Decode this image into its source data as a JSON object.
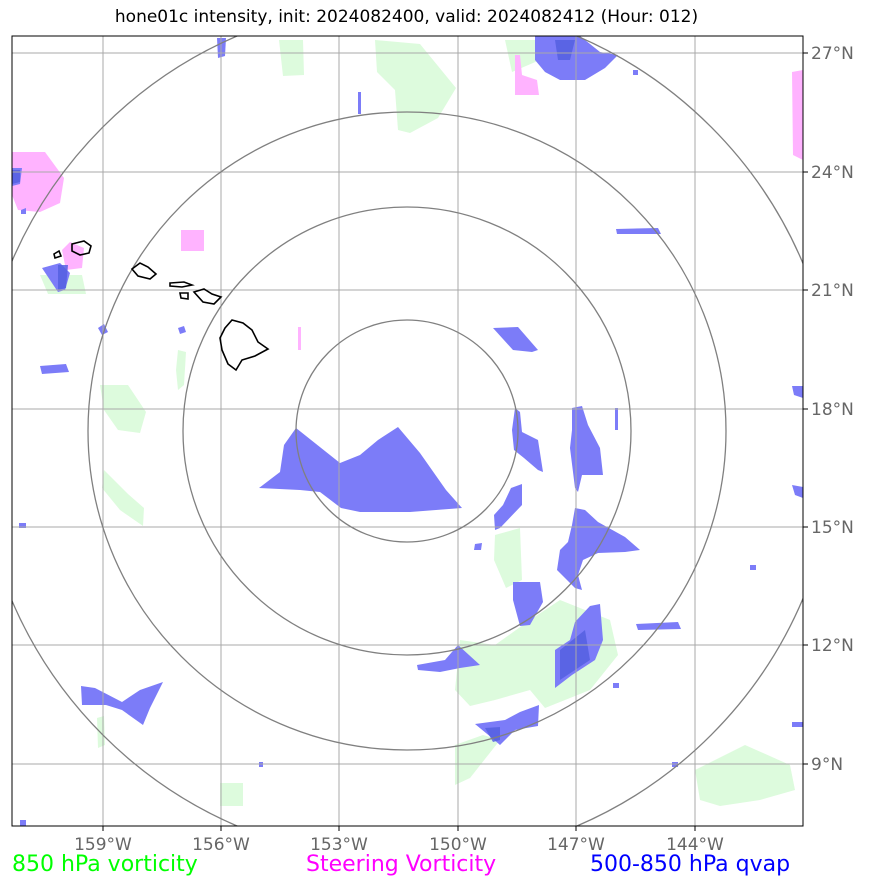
{
  "title": "hone01c intensity, init: 2024082400, valid: 2024082412 (Hour: 012)",
  "map": {
    "lon_labels": [
      "159°W",
      "156°W",
      "153°W",
      "150°W",
      "147°W",
      "144°W"
    ],
    "lat_labels": [
      "27°N",
      "24°N",
      "21°N",
      "18°N",
      "15°N",
      "12°N",
      "9°N"
    ],
    "range_rings": 4
  },
  "legend": {
    "vort850": {
      "label": "850 hPa vorticity",
      "color": "#00ff00"
    },
    "steering": {
      "label": "Steering Vorticity",
      "color": "#ff00ff"
    },
    "qvap": {
      "label": "500-850 hPa qvap",
      "color": "#0000ff"
    }
  },
  "colors": {
    "green_fill": "#ddfbdd",
    "magenta_fill": "#ffb3ff",
    "blue_fill": "#7c7cf8",
    "grid": "#a9a9a9",
    "rings": "#808080"
  }
}
